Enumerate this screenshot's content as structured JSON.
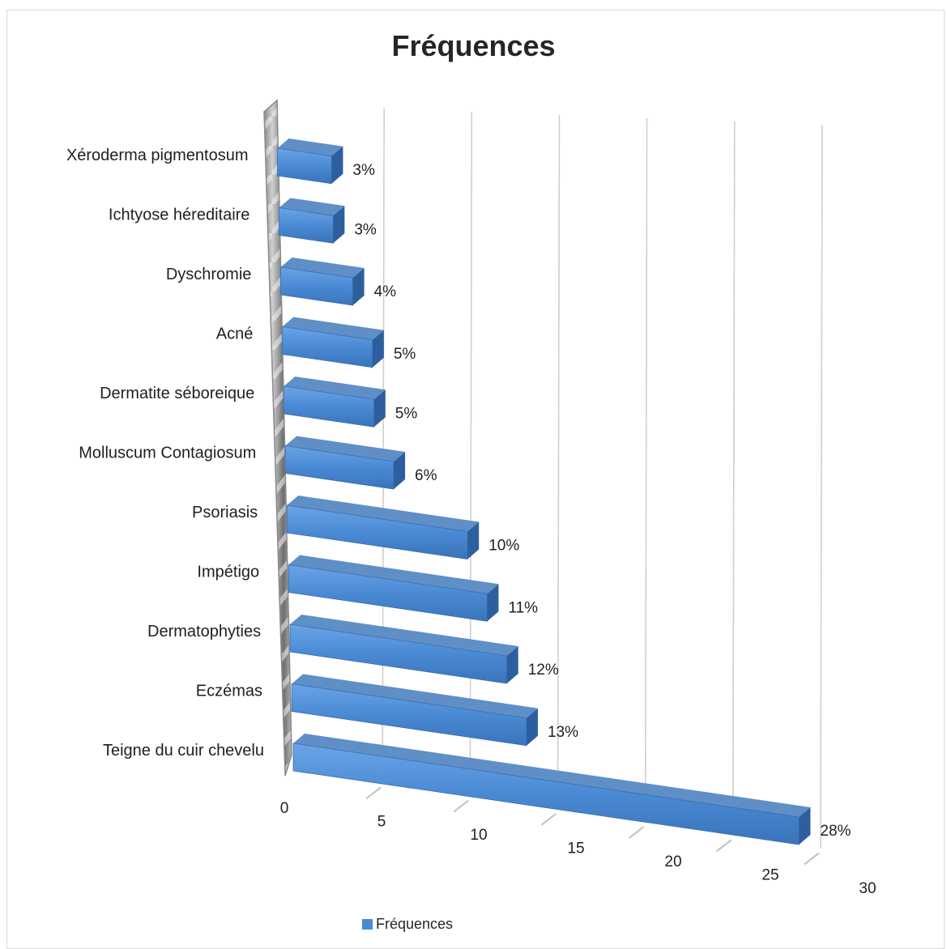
{
  "chart_data": {
    "type": "bar",
    "orientation": "horizontal",
    "style": "3d",
    "title": "Fréquences",
    "categories": [
      "Teigne du cuir chevelu",
      "Eczémas",
      "Dermatophyties",
      "Impétigo",
      "Psoriasis",
      "Molluscum Contagiosum",
      "Dermatite séboreique",
      "Acné",
      "Dyschromie",
      "Ichtyose héreditaire",
      "Xéroderma pigmentosum"
    ],
    "series": [
      {
        "name": "Fréquences",
        "values": [
          28,
          13,
          12,
          11,
          10,
          6,
          5,
          5,
          4,
          3,
          3
        ],
        "labels": [
          "28%",
          "13%",
          "12%",
          "11%",
          "10%",
          "6%",
          "5%",
          "5%",
          "4%",
          "3%",
          "3%"
        ]
      }
    ],
    "xlim": [
      0,
      30
    ],
    "xticks": [
      "0",
      "5",
      "10",
      "15",
      "20",
      "25",
      "30"
    ],
    "grid": true,
    "legend_position": "bottom",
    "colors": {
      "bar": "#4a8ad4",
      "bar_top": "#6fa3e0",
      "bar_side": "#2d5f9e",
      "wall": "#8c8c8c"
    }
  }
}
